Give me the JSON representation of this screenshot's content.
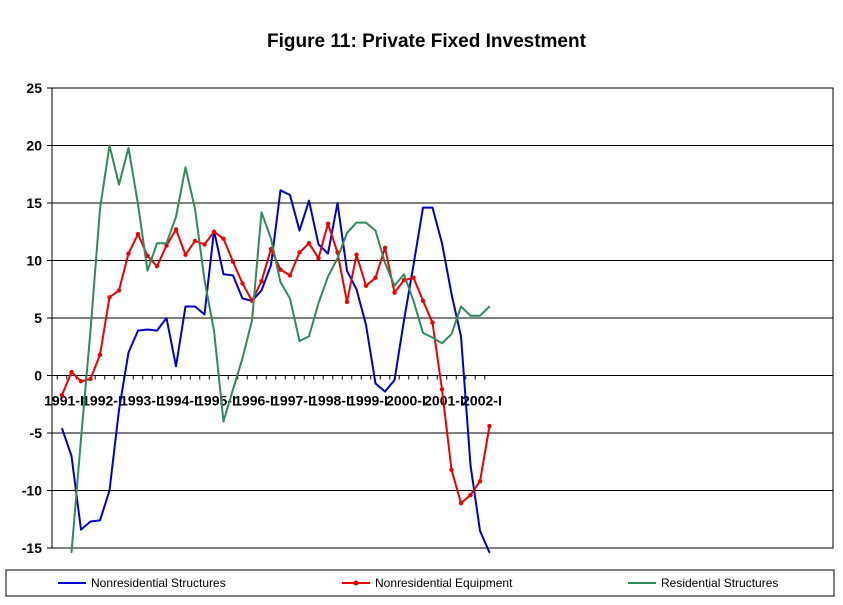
{
  "chart_data": {
    "type": "line",
    "title": "Figure 11: Private Fixed Investment",
    "xlabel": "",
    "ylabel": "",
    "ylim": [
      -15,
      25
    ],
    "y_ticks": [
      "25",
      "20",
      "15",
      "10",
      "5",
      "0",
      "-5",
      "-10",
      "-15"
    ],
    "x_tick_labels": [
      "1991-I",
      "1992-I",
      "1993-I",
      "1994-I",
      "1995-I",
      "1996-I",
      "1997-I",
      "1998-I",
      "1999-I",
      "2000-I",
      "2001-I",
      "2002-I"
    ],
    "grid": "horizontal",
    "legend_position": "bottom",
    "series": [
      {
        "name": "Nonresidential Structures",
        "color": "#0000cc",
        "marker": false,
        "values": [
          -4.6,
          -7.0,
          -13.4,
          -12.7,
          -12.6,
          -10.0,
          -3.0,
          2.0,
          3.9,
          4.0,
          3.9,
          5.0,
          0.8,
          6.0,
          6.0,
          5.3,
          12.6,
          8.8,
          8.7,
          6.7,
          6.5,
          7.4,
          9.6,
          16.1,
          15.7,
          12.6,
          15.2,
          11.4,
          10.6,
          15.0,
          9.1,
          7.5,
          4.4,
          -0.7,
          -1.4,
          -0.4,
          4.8,
          9.6,
          14.6,
          14.6,
          11.5,
          7.1,
          3.4,
          -7.8,
          -13.5,
          -15.4
        ]
      },
      {
        "name": "Nonresidential Equipment",
        "color": "#ee0000",
        "marker": true,
        "values": [
          -1.7,
          0.3,
          -0.5,
          -0.3,
          1.8,
          6.8,
          7.4,
          10.6,
          12.3,
          10.4,
          9.5,
          11.3,
          12.7,
          10.5,
          11.7,
          11.4,
          12.5,
          11.9,
          9.9,
          8.0,
          6.5,
          8.2,
          11.0,
          9.2,
          8.7,
          10.7,
          11.5,
          10.2,
          13.2,
          10.7,
          6.4,
          10.5,
          7.8,
          8.5,
          11.1,
          7.2,
          8.3,
          8.5,
          6.5,
          4.6,
          -1.2,
          -8.2,
          -11.1,
          -10.4,
          -9.2,
          -4.4
        ]
      },
      {
        "name": "Residential Structures",
        "color": "#2e8b5a",
        "marker": false,
        "values": [
          null,
          -15.4,
          -5.5,
          3.9,
          14.5,
          20.0,
          16.6,
          19.8,
          14.9,
          9.1,
          11.5,
          11.5,
          13.8,
          18.1,
          14.5,
          8.3,
          3.9,
          -4.0,
          -1.2,
          1.5,
          4.8,
          14.2,
          11.9,
          8.1,
          6.7,
          3.0,
          3.4,
          6.3,
          8.6,
          10.2,
          12.4,
          13.3,
          13.3,
          12.6,
          9.8,
          7.8,
          8.8,
          6.5,
          3.7,
          3.3,
          2.8,
          3.6,
          6.0,
          5.2,
          5.2,
          6.0
        ]
      }
    ]
  }
}
